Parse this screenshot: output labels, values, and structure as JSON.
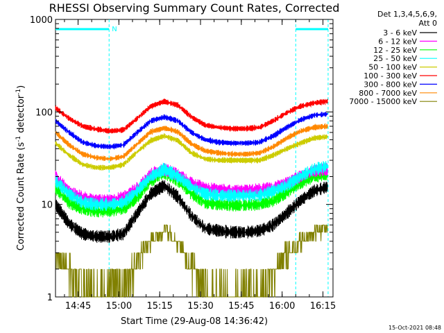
{
  "chart_data": {
    "type": "line",
    "title": "RHESSI Observing Summary Count Rates, Corrected",
    "xlabel": "Start Time (29-Aug-08 14:36:42)",
    "ylabel_main": "Corrected Count Rate (s",
    "ylabel_sup1": "-1",
    "ylabel_mid": " detector",
    "ylabel_sup2": "-1",
    "ylabel_end": ")",
    "yscale": "log",
    "ylim": [
      1,
      1000
    ],
    "xlim_minutes": [
      0,
      102
    ],
    "x_ticks": [
      {
        "minute": 8.3,
        "label": "14:45"
      },
      {
        "minute": 23.3,
        "label": "15:00"
      },
      {
        "minute": 38.3,
        "label": "15:15"
      },
      {
        "minute": 53.3,
        "label": "15:30"
      },
      {
        "minute": 68.3,
        "label": "15:45"
      },
      {
        "minute": 83.3,
        "label": "16:00"
      },
      {
        "minute": 98.3,
        "label": "16:15"
      }
    ],
    "y_ticks": [
      {
        "value": 1,
        "label": "1"
      },
      {
        "value": 10,
        "label": "10"
      },
      {
        "value": 100,
        "label": "100"
      },
      {
        "value": 1000,
        "label": "1000"
      }
    ],
    "night_flag_label": "N",
    "flag_intervals_minutes": [
      [
        0,
        19.7
      ],
      [
        88.3,
        100.2
      ]
    ],
    "legend_header": [
      "Det 1,3,4,5,6,9,",
      "Att 0"
    ],
    "footer_date": "15-Oct-2021 08:48",
    "x_minutes": [
      0,
      5,
      10,
      15,
      20,
      25,
      30,
      35,
      40,
      45,
      50,
      55,
      60,
      65,
      70,
      75,
      80,
      85,
      90,
      95,
      100
    ],
    "series": [
      {
        "name": "3 - 6 keV",
        "color": "#000000",
        "values": [
          10,
          6.2,
          4.8,
          4.5,
          4.5,
          4.8,
          8,
          13,
          16,
          12,
          7.5,
          5.5,
          5.2,
          5.0,
          5.0,
          5.2,
          6,
          8,
          11,
          14,
          15.5
        ]
      },
      {
        "name": "6 - 12 keV",
        "color": "#ff00ff",
        "values": [
          20,
          14,
          12,
          11,
          11,
          12,
          15,
          21,
          24,
          21,
          17,
          15,
          14.5,
          14,
          14,
          14.5,
          15,
          17,
          20,
          23,
          24
        ]
      },
      {
        "name": "12 - 25 keV",
        "color": "#00ff00",
        "values": [
          15,
          10.5,
          9,
          8.5,
          8.5,
          9,
          12,
          18,
          22,
          18,
          13,
          10.5,
          10,
          9.8,
          9.8,
          10,
          11,
          13.5,
          17,
          20,
          21
        ]
      },
      {
        "name": "25 - 50 keV",
        "color": "#00ffff",
        "values": [
          18,
          13,
          10.5,
          10,
          10,
          10.5,
          14,
          20,
          24,
          20,
          15.5,
          13,
          12.5,
          12.5,
          12.5,
          12.5,
          14,
          16,
          20,
          24,
          26
        ]
      },
      {
        "name": "50 - 100 keV",
        "color": "#cccc00",
        "values": [
          46,
          34,
          27,
          25,
          25,
          27,
          37,
          49,
          55,
          49,
          36,
          31,
          30,
          30,
          30,
          30,
          34,
          40,
          46,
          52,
          54
        ]
      },
      {
        "name": "100 - 300 keV",
        "color": "#ff0000",
        "values": [
          110,
          85,
          70,
          65,
          62,
          64,
          85,
          115,
          130,
          118,
          88,
          72,
          68,
          66,
          66,
          68,
          80,
          98,
          115,
          125,
          130
        ]
      },
      {
        "name": "300 - 800 keV",
        "color": "#0000ff",
        "values": [
          80,
          60,
          47,
          43,
          42,
          44,
          60,
          80,
          88,
          80,
          60,
          50,
          47,
          46,
          46,
          47,
          55,
          68,
          82,
          92,
          95
        ]
      },
      {
        "name": "800 - 7000 keV",
        "color": "#ff8800",
        "values": [
          60,
          44,
          35,
          32,
          31,
          33,
          45,
          61,
          67,
          61,
          45,
          38,
          36,
          35,
          35,
          36,
          42,
          52,
          62,
          68,
          70
        ]
      },
      {
        "name": "7000 - 15000 keV",
        "color": "#808000",
        "values": [
          3,
          2,
          1.3,
          1.1,
          1.2,
          1.5,
          2.5,
          4,
          5.5,
          4,
          2.2,
          1.3,
          1.0,
          1.0,
          1.0,
          1.1,
          1.8,
          3,
          4,
          5,
          5.5
        ]
      }
    ]
  }
}
